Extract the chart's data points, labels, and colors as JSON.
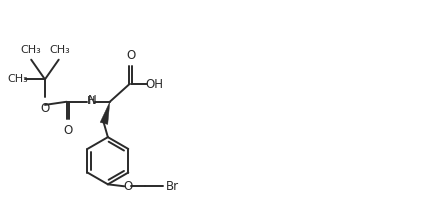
{
  "bg_color": "#ffffff",
  "line_color": "#2a2a2a",
  "line_width": 1.4,
  "font_size": 8.5,
  "fig_width": 4.32,
  "fig_height": 1.98,
  "dpi": 100,
  "xlim": [
    0,
    108
  ],
  "ylim": [
    0,
    50
  ]
}
